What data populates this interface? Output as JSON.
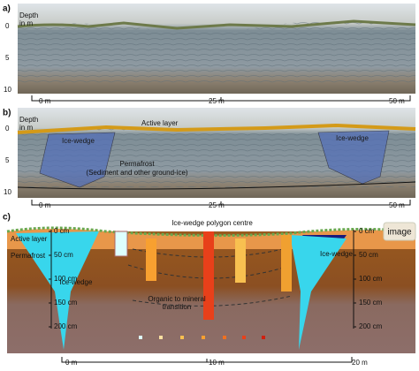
{
  "panels": [
    {
      "label": "a)",
      "depth_title": [
        "Depth",
        "in m"
      ],
      "depth_ticks": [
        "0",
        "5",
        "10"
      ],
      "scale": [
        "0 m",
        "25 m",
        "50 m"
      ]
    },
    {
      "label": "b)",
      "depth_title": [
        "Depth",
        "in m"
      ],
      "depth_ticks": [
        "0",
        "5",
        "10"
      ],
      "scale": [
        "0 m",
        "25 m",
        "50 m"
      ],
      "annotations": {
        "active_layer": "Active layer",
        "wedge_left": "Ice-wedge",
        "wedge_right": "Ice-wedge",
        "permafrost": [
          "Permafrost",
          "(Sediment and other ground-ice)"
        ]
      }
    }
  ],
  "diagram": {
    "label": "c)",
    "title": "Ice-wedge polygon centre",
    "layers": [
      "Active layer",
      "Permafrost"
    ],
    "wedges": [
      "Ice-wedge",
      "Ice-wedge"
    ],
    "transition": [
      "Organic to mineral",
      "transition"
    ],
    "left_depths": [
      "0 cm",
      "50 cm",
      "100 cm",
      "150 cm",
      "200 cm"
    ],
    "right_depths": [
      "0 cm",
      "50 cm",
      "100 cm",
      "150 cm",
      "200 cm"
    ],
    "scale": [
      "0 m",
      "10 m",
      "20 m"
    ],
    "badge": "image"
  }
}
